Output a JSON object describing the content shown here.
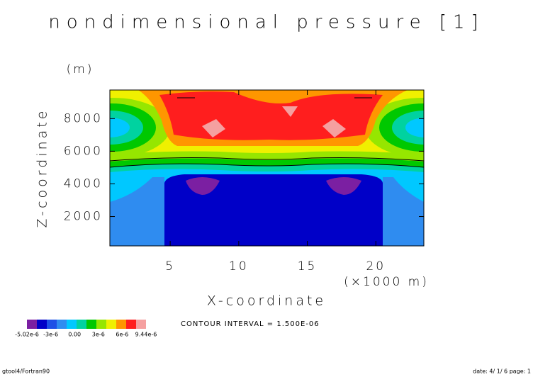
{
  "chart_data": {
    "type": "contour",
    "title": "nondimensional pressure [1]",
    "x_label": "X-coordinate",
    "x_unit": "(×1000 m)",
    "y_label": "Z-coordinate",
    "y_unit": "(m)",
    "xlim": [
      0.6,
      23.5
    ],
    "xticks": [
      5,
      10,
      15,
      20
    ],
    "ylim": [
      200,
      9750
    ],
    "yticks": [
      2000,
      4000,
      6000,
      8000
    ],
    "colorbar": {
      "colors": [
        "#7b1fa2",
        "#0000c8",
        "#1e50e6",
        "#2f8cf0",
        "#00c8ff",
        "#00d2a0",
        "#00c800",
        "#96e600",
        "#f0f000",
        "#ff9600",
        "#ff1e1e",
        "#f5a0a0"
      ],
      "labels": [
        "-5.02e-6",
        "-3e-6",
        "0.00",
        "3e-6",
        "6e-6",
        "9.44e-6"
      ]
    },
    "contour_interval": "CONTOUR INTERVAL = 1.500E-06",
    "footer_left": "gtool4/Fortran90",
    "footer_right": "date: 4/ 1/ 6 page: 1"
  }
}
